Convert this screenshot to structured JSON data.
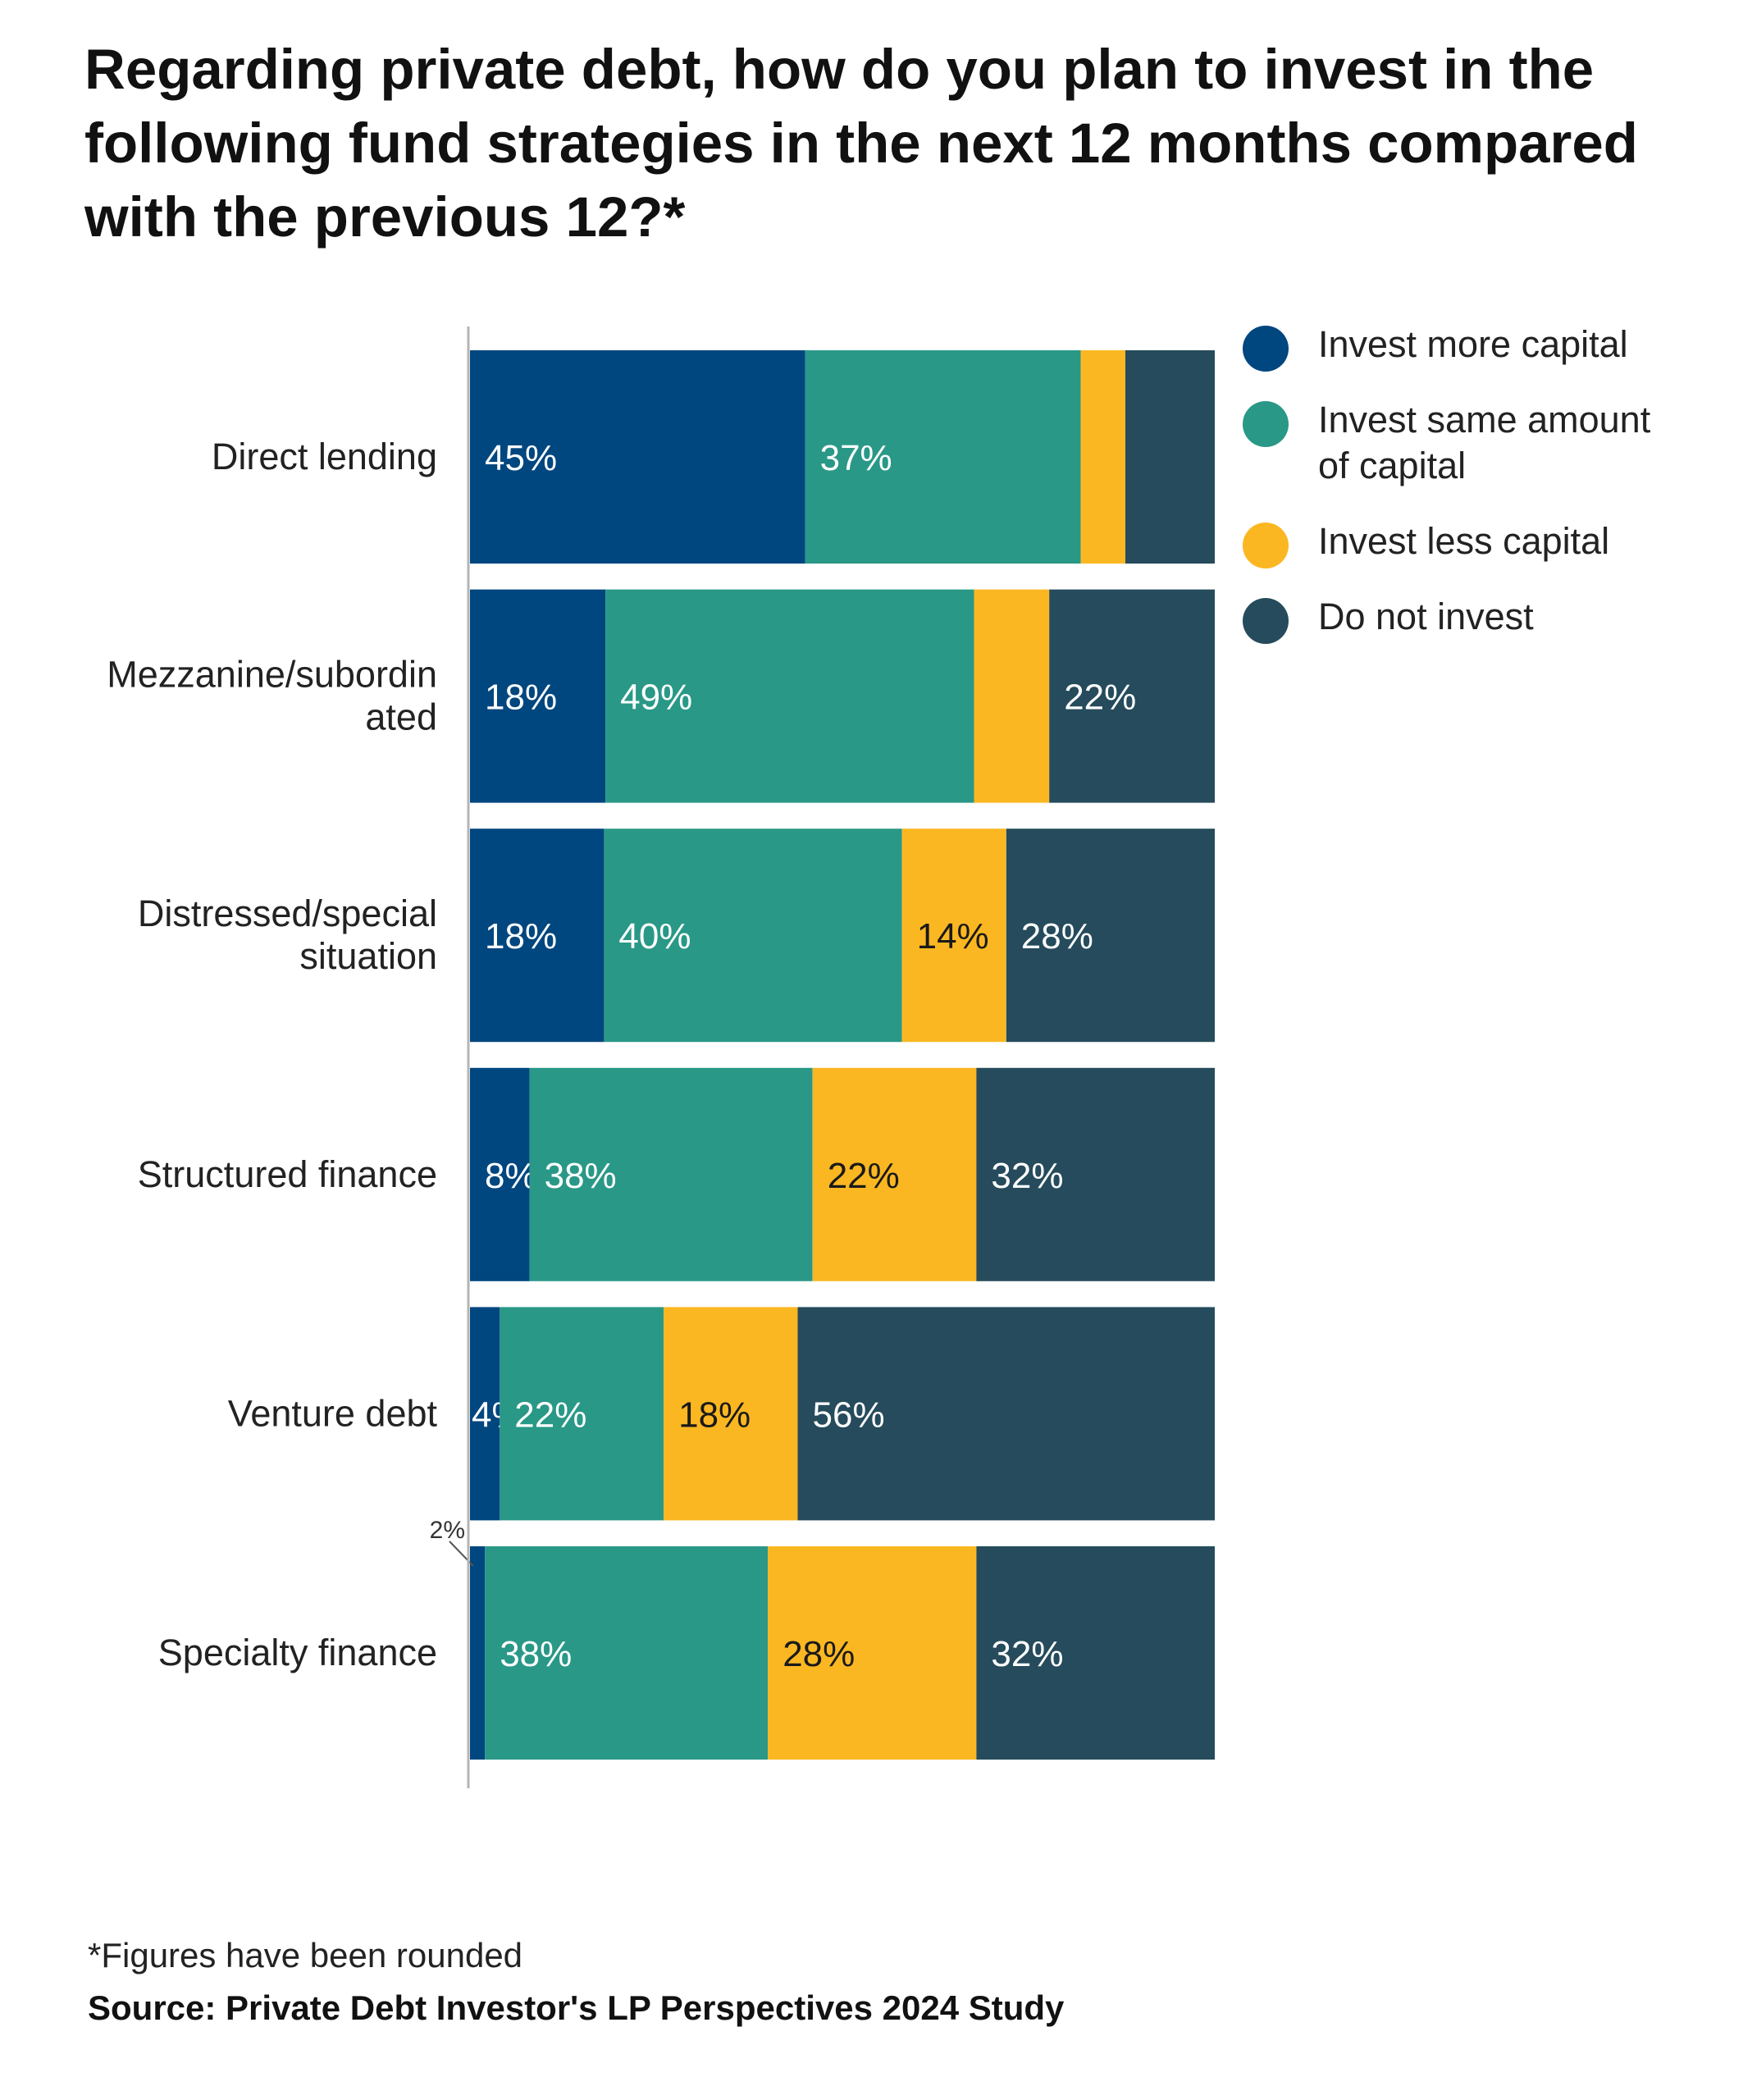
{
  "chart_data": {
    "type": "bar",
    "orientation": "horizontal",
    "stacked": true,
    "title": "Regarding private debt, how do you plan to invest in the following fund strategies in the next 12 months compared with the previous 12?*",
    "categories": [
      "Direct lending",
      "Mezzanine/subordinated",
      "Distressed/special situation",
      "Structured finance",
      "Venture debt",
      "Specialty finance"
    ],
    "series": [
      {
        "name": "Invest more capital",
        "color": "#00467F",
        "values": [
          45,
          18,
          18,
          8,
          4,
          2
        ],
        "labels": [
          "45%",
          "18%",
          "18%",
          "8%",
          "4%",
          "2%"
        ]
      },
      {
        "name": "Invest same amount of capital",
        "color": "#299887",
        "values": [
          37,
          49,
          40,
          38,
          22,
          38
        ],
        "labels": [
          "37%",
          "49%",
          "40%",
          "38%",
          "22%",
          "38%"
        ]
      },
      {
        "name": "Invest less capital",
        "color": "#FBB722",
        "values": [
          6,
          10,
          14,
          22,
          18,
          28
        ],
        "labels": [
          "",
          "",
          "14%",
          "22%",
          "18%",
          "28%"
        ]
      },
      {
        "name": "Do not invest",
        "color": "#254B5C",
        "values": [
          12,
          22,
          28,
          32,
          56,
          32
        ],
        "labels": [
          "",
          "22%",
          "28%",
          "32%",
          "56%",
          "32%"
        ]
      }
    ],
    "xlim": [
      0,
      100
    ],
    "legend_position": "right",
    "grid": false
  },
  "category_labels": [
    [
      "Direct lending"
    ],
    [
      "Mezzanine/subordin",
      "ated"
    ],
    [
      "Distressed/special",
      "situation"
    ],
    [
      "Structured finance"
    ],
    [
      "Venture debt"
    ],
    [
      "Specialty finance"
    ]
  ],
  "footnote": "*Figures have been rounded",
  "source": "Source: Private Debt Investor's LP Perspectives 2024 Study"
}
